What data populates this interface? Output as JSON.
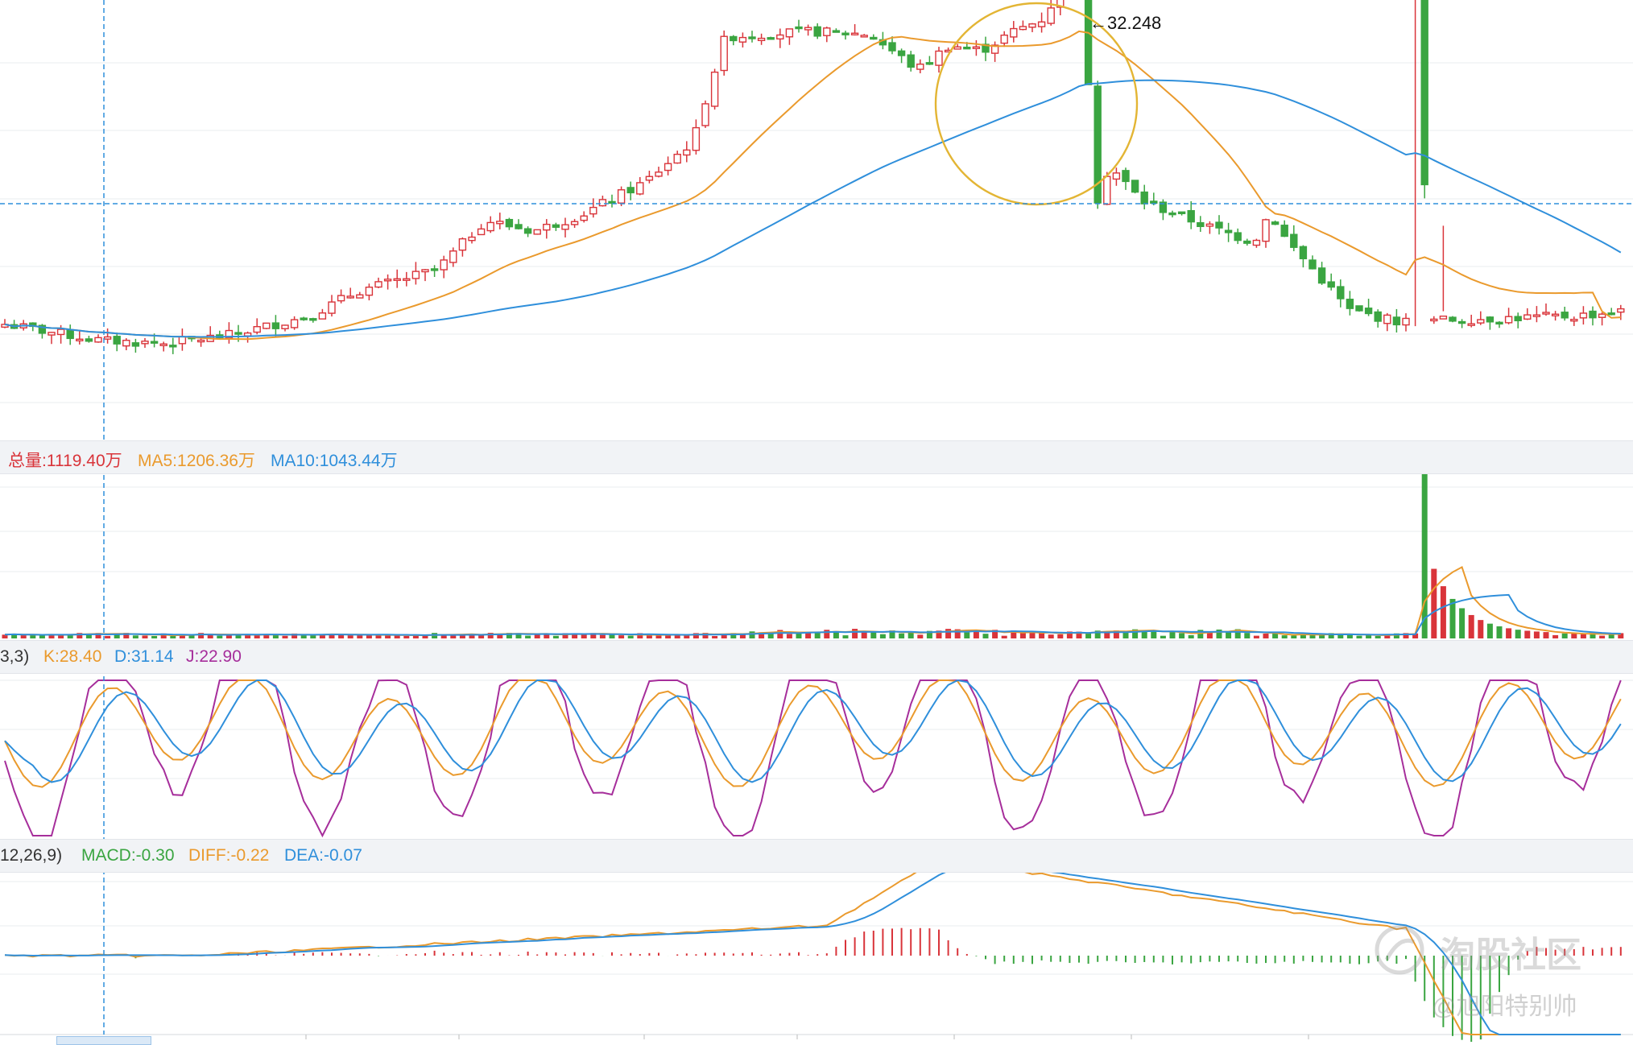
{
  "colors": {
    "up": "#d9343a",
    "down": "#3aa541",
    "ma_orange": "#ea9a2d",
    "ma_blue": "#2f8fdb",
    "k_orange": "#ea9a2d",
    "d_blue": "#2f8fdb",
    "j_purple": "#a62e9b",
    "grid": "#e9ecef",
    "crosshair": "#2f8fdb",
    "circle": "#e3b534",
    "header_bg": "#f1f3f6"
  },
  "price_panel": {
    "peak_label": "←32.248",
    "highlight": "circle around the spike peak"
  },
  "volume_panel": {
    "total_label": "总量:1119.40万",
    "ma5_label": "MA5:1206.36万",
    "ma10_label": "MA10:1043.44万"
  },
  "kdj_panel": {
    "params_label": "3,3)",
    "k_label": "K:28.40",
    "d_label": "D:31.14",
    "j_label": "J:22.90"
  },
  "macd_panel": {
    "params_label": "12,26,9)",
    "macd_label": "MACD:-0.30",
    "diff_label": "DIFF:-0.22",
    "dea_label": "DEA:-0.07"
  },
  "watermark": {
    "community": "淘股社区",
    "author": "@旭阳特别帅"
  },
  "chart_data": [
    {
      "type": "candlestick",
      "name": "price",
      "annotations": [
        "←32.248"
      ],
      "ma_lines": [
        "orange short MA",
        "blue long MA"
      ],
      "note": "stock rises from about 17 to a peak of 32.248 then falls back to about 18"
    },
    {
      "type": "bar",
      "name": "volume",
      "series": [
        {
          "name": "总量",
          "value": "1119.40万"
        },
        {
          "name": "MA5",
          "value": "1206.36万"
        },
        {
          "name": "MA10",
          "value": "1043.44万"
        }
      ]
    },
    {
      "type": "line",
      "name": "KDJ",
      "series": [
        {
          "name": "K",
          "value": 28.4
        },
        {
          "name": "D",
          "value": 31.14
        },
        {
          "name": "J",
          "value": 22.9
        }
      ]
    },
    {
      "type": "bar",
      "name": "MACD",
      "series": [
        {
          "name": "MACD",
          "value": -0.3
        },
        {
          "name": "DIFF",
          "value": -0.22
        },
        {
          "name": "DEA",
          "value": -0.07
        }
      ]
    }
  ]
}
